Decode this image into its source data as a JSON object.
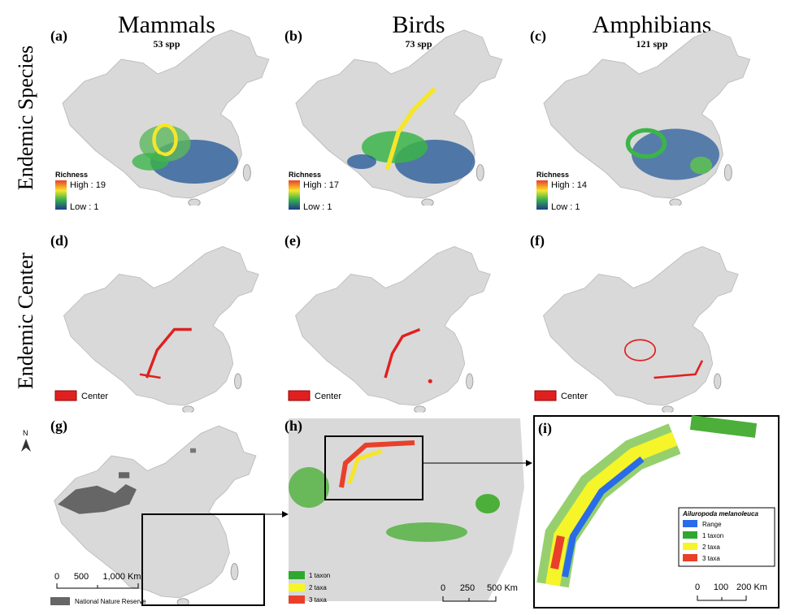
{
  "columns": [
    {
      "title": "Mammals",
      "count": "53 spp"
    },
    {
      "title": "Birds",
      "count": "73 spp"
    },
    {
      "title": "Amphibians",
      "count": "121 spp"
    }
  ],
  "rows": [
    "Endemic Species",
    "Endemic Center"
  ],
  "richness_panels": [
    {
      "label": "(a)",
      "legend_title": "Richness",
      "high": "High : 19",
      "low": "Low : 1"
    },
    {
      "label": "(b)",
      "legend_title": "Richness",
      "high": "High : 17",
      "low": "Low : 1"
    },
    {
      "label": "(c)",
      "legend_title": "Richness",
      "high": "High : 14",
      "low": "Low : 1"
    }
  ],
  "center_panels": [
    {
      "label": "(d)",
      "legend": "Center"
    },
    {
      "label": "(e)",
      "legend": "Center"
    },
    {
      "label": "(f)",
      "legend": "Center"
    }
  ],
  "panel_g": {
    "label": "(g)",
    "north": "N",
    "scale": [
      "0",
      "500",
      "1,000 Km"
    ],
    "legend": "National Nature Reserve"
  },
  "panel_h": {
    "label": "(h)",
    "legend": [
      "1 taxon",
      "2 taxa",
      "3 taxa"
    ],
    "scale": [
      "0",
      "250",
      "500 Km"
    ]
  },
  "panel_i": {
    "label": "(i)",
    "legend_title": "Ailuropoda melanoleuca",
    "legend": [
      "Range",
      "1 taxon",
      "2 taxa",
      "3 taxa"
    ],
    "scale": [
      "0",
      "100",
      "200 Km"
    ]
  }
}
